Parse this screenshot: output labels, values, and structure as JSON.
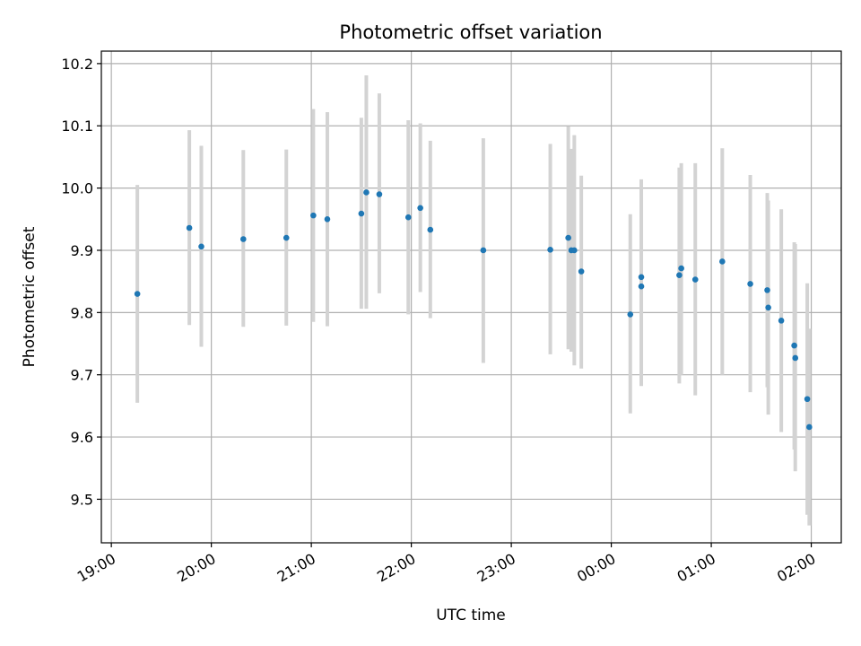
{
  "chart_data": {
    "type": "scatter",
    "title": "Photometric offset variation",
    "xlabel": "UTC time",
    "ylabel": "Photometric offset",
    "x_unit": "hours since 19:00 UTC",
    "xlim": [
      -0.1,
      7.3
    ],
    "ylim": [
      9.43,
      10.22
    ],
    "grid": true,
    "x_ticks": [
      {
        "value": 0,
        "label": "19:00"
      },
      {
        "value": 1,
        "label": "20:00"
      },
      {
        "value": 2,
        "label": "21:00"
      },
      {
        "value": 3,
        "label": "22:00"
      },
      {
        "value": 4,
        "label": "23:00"
      },
      {
        "value": 5,
        "label": "00:00"
      },
      {
        "value": 6,
        "label": "01:00"
      },
      {
        "value": 7,
        "label": "02:00"
      }
    ],
    "y_ticks": [
      {
        "value": 9.5,
        "label": "9.5"
      },
      {
        "value": 9.6,
        "label": "9.6"
      },
      {
        "value": 9.7,
        "label": "9.7"
      },
      {
        "value": 9.8,
        "label": "9.8"
      },
      {
        "value": 9.9,
        "label": "9.9"
      },
      {
        "value": 10.0,
        "label": "10.0"
      },
      {
        "value": 10.1,
        "label": "10.1"
      },
      {
        "value": 10.2,
        "label": "10.2"
      }
    ],
    "colors": {
      "point": "#1f77b4",
      "errorbar": "#d3d3d3",
      "grid": "#b0b0b0"
    },
    "points": [
      {
        "x": 0.26,
        "y": 9.83,
        "ylow": 9.655,
        "yhigh": 10.005
      },
      {
        "x": 0.78,
        "y": 9.936,
        "ylow": 9.78,
        "yhigh": 10.093
      },
      {
        "x": 0.9,
        "y": 9.906,
        "ylow": 9.745,
        "yhigh": 10.068
      },
      {
        "x": 1.32,
        "y": 9.918,
        "ylow": 9.777,
        "yhigh": 10.061
      },
      {
        "x": 1.75,
        "y": 9.92,
        "ylow": 9.779,
        "yhigh": 10.062
      },
      {
        "x": 2.02,
        "y": 9.956,
        "ylow": 9.785,
        "yhigh": 10.127
      },
      {
        "x": 2.16,
        "y": 9.95,
        "ylow": 9.778,
        "yhigh": 10.122
      },
      {
        "x": 2.5,
        "y": 9.959,
        "ylow": 9.806,
        "yhigh": 10.113
      },
      {
        "x": 2.55,
        "y": 9.993,
        "ylow": 9.806,
        "yhigh": 10.181
      },
      {
        "x": 2.68,
        "y": 9.99,
        "ylow": 9.831,
        "yhigh": 10.152
      },
      {
        "x": 2.97,
        "y": 9.953,
        "ylow": 9.797,
        "yhigh": 10.109
      },
      {
        "x": 3.09,
        "y": 9.968,
        "ylow": 9.833,
        "yhigh": 10.104
      },
      {
        "x": 3.19,
        "y": 9.933,
        "ylow": 9.791,
        "yhigh": 10.076
      },
      {
        "x": 3.72,
        "y": 9.9,
        "ylow": 9.719,
        "yhigh": 10.08
      },
      {
        "x": 4.39,
        "y": 9.901,
        "ylow": 9.733,
        "yhigh": 10.071
      },
      {
        "x": 4.57,
        "y": 9.92,
        "ylow": 9.741,
        "yhigh": 10.099
      },
      {
        "x": 4.6,
        "y": 9.9,
        "ylow": 9.737,
        "yhigh": 10.063
      },
      {
        "x": 4.63,
        "y": 9.9,
        "ylow": 9.715,
        "yhigh": 10.085
      },
      {
        "x": 4.7,
        "y": 9.866,
        "ylow": 9.71,
        "yhigh": 10.02
      },
      {
        "x": 5.19,
        "y": 9.797,
        "ylow": 9.638,
        "yhigh": 9.958
      },
      {
        "x": 5.3,
        "y": 9.857,
        "ylow": 9.7,
        "yhigh": 10.014
      },
      {
        "x": 5.3,
        "y": 9.842,
        "ylow": 9.682,
        "yhigh": 10.001
      },
      {
        "x": 5.68,
        "y": 9.86,
        "ylow": 9.686,
        "yhigh": 10.033
      },
      {
        "x": 5.7,
        "y": 9.871,
        "ylow": 9.7,
        "yhigh": 10.04
      },
      {
        "x": 5.84,
        "y": 9.853,
        "ylow": 9.667,
        "yhigh": 10.04
      },
      {
        "x": 6.11,
        "y": 9.882,
        "ylow": 9.7,
        "yhigh": 10.064
      },
      {
        "x": 6.39,
        "y": 9.846,
        "ylow": 9.672,
        "yhigh": 10.021
      },
      {
        "x": 6.56,
        "y": 9.836,
        "ylow": 9.68,
        "yhigh": 9.992
      },
      {
        "x": 6.57,
        "y": 9.808,
        "ylow": 9.636,
        "yhigh": 9.98
      },
      {
        "x": 6.7,
        "y": 9.787,
        "ylow": 9.608,
        "yhigh": 9.966
      },
      {
        "x": 6.83,
        "y": 9.747,
        "ylow": 9.58,
        "yhigh": 9.913
      },
      {
        "x": 6.84,
        "y": 9.727,
        "ylow": 9.545,
        "yhigh": 9.91
      },
      {
        "x": 6.96,
        "y": 9.661,
        "ylow": 9.475,
        "yhigh": 9.847
      },
      {
        "x": 6.98,
        "y": 9.616,
        "ylow": 9.458,
        "yhigh": 9.774
      }
    ]
  }
}
